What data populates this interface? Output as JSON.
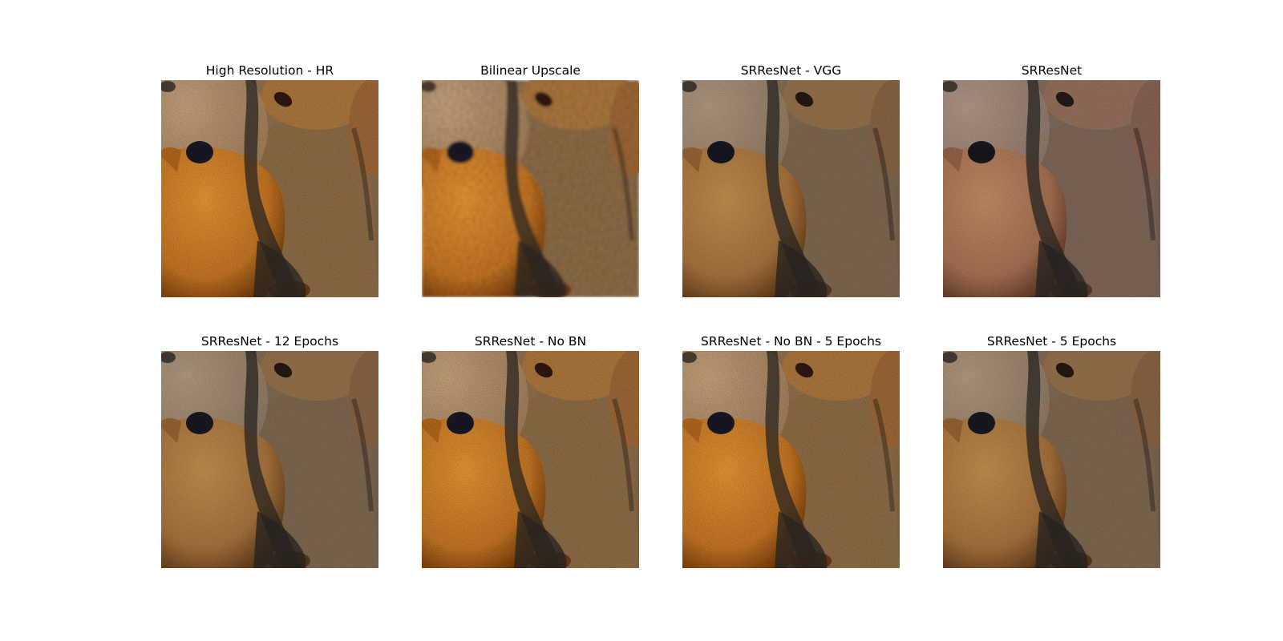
{
  "figure": {
    "panels": [
      {
        "title": "High Resolution - HR",
        "style": "sharp",
        "tint": "natural"
      },
      {
        "title": "Bilinear Upscale",
        "style": "blurry",
        "tint": "natural"
      },
      {
        "title": "SRResNet - VGG",
        "style": "textured",
        "tint": "desaturated"
      },
      {
        "title": "SRResNet",
        "style": "textured",
        "tint": "bluish"
      },
      {
        "title": "SRResNet - 12 Epochs",
        "style": "textured",
        "tint": "desaturated"
      },
      {
        "title": "SRResNet - No BN",
        "style": "sharp",
        "tint": "natural"
      },
      {
        "title": "SRResNet - No BN - 5 Epochs",
        "style": "sharp",
        "tint": "natural"
      },
      {
        "title": "SRResNet - 5 Epochs",
        "style": "textured",
        "tint": "desaturated"
      }
    ],
    "subject": "teddy-bears-closeup",
    "colors": {
      "background_fur": "#8a6a48",
      "left_bear_head": "#a4805c",
      "right_bear_head": "#b07a40",
      "front_bear_orange": "#c87828",
      "shadow": "#2a2620",
      "eye": "#151820"
    }
  }
}
